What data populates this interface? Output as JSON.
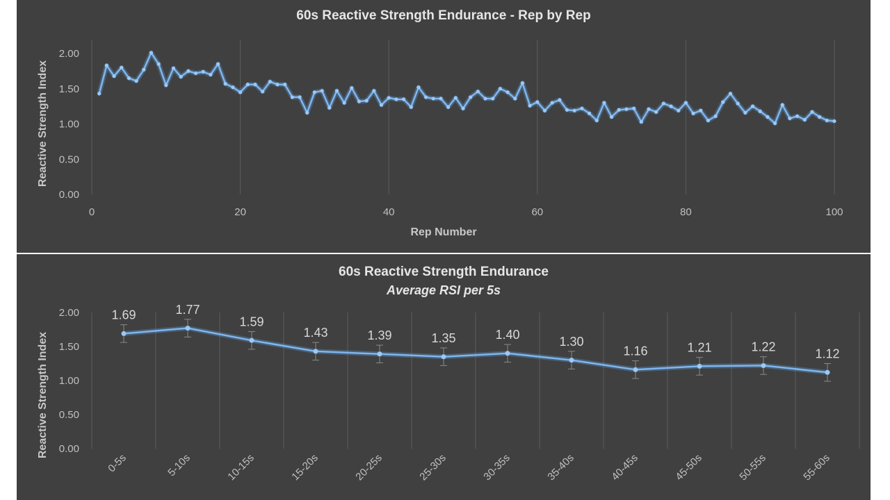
{
  "chart_data": [
    {
      "type": "line",
      "title": "60s Reactive Strength Endurance - Rep by Rep",
      "xlabel": "Rep Number",
      "ylabel": "Reactive Strength Index",
      "xlim": [
        0,
        100
      ],
      "ylim": [
        0,
        2
      ],
      "xticks": [
        "0",
        "20",
        "40",
        "60",
        "80",
        "100"
      ],
      "yticks": [
        "0.00",
        "0.50",
        "1.00",
        "1.50",
        "2.00"
      ],
      "x": [
        1,
        2,
        3,
        4,
        5,
        6,
        7,
        8,
        9,
        10,
        11,
        12,
        13,
        14,
        15,
        16,
        17,
        18,
        19,
        20,
        21,
        22,
        23,
        24,
        25,
        26,
        27,
        28,
        29,
        30,
        31,
        32,
        33,
        34,
        35,
        36,
        37,
        38,
        39,
        40,
        41,
        42,
        43,
        44,
        45,
        46,
        47,
        48,
        49,
        50,
        51,
        52,
        53,
        54,
        55,
        56,
        57,
        58,
        59,
        60,
        61,
        62,
        63,
        64,
        65,
        66,
        67,
        68,
        69,
        70,
        71,
        72,
        73,
        74,
        75,
        76,
        77,
        78,
        79,
        80,
        81,
        82,
        83,
        84,
        85,
        86,
        87,
        88,
        89,
        90,
        91,
        92,
        93,
        94,
        95,
        96,
        97,
        98,
        99,
        100
      ],
      "values": [
        1.43,
        1.83,
        1.68,
        1.8,
        1.65,
        1.61,
        1.77,
        2.01,
        1.85,
        1.55,
        1.79,
        1.67,
        1.75,
        1.72,
        1.74,
        1.7,
        1.85,
        1.57,
        1.52,
        1.45,
        1.56,
        1.56,
        1.46,
        1.6,
        1.56,
        1.56,
        1.38,
        1.38,
        1.16,
        1.45,
        1.47,
        1.23,
        1.47,
        1.3,
        1.51,
        1.32,
        1.33,
        1.47,
        1.27,
        1.37,
        1.35,
        1.35,
        1.24,
        1.52,
        1.38,
        1.36,
        1.36,
        1.24,
        1.37,
        1.22,
        1.38,
        1.46,
        1.36,
        1.36,
        1.5,
        1.45,
        1.36,
        1.58,
        1.26,
        1.31,
        1.19,
        1.3,
        1.34,
        1.2,
        1.19,
        1.22,
        1.15,
        1.05,
        1.3,
        1.1,
        1.2,
        1.21,
        1.22,
        1.03,
        1.21,
        1.17,
        1.29,
        1.25,
        1.19,
        1.3,
        1.15,
        1.19,
        1.05,
        1.11,
        1.31,
        1.43,
        1.29,
        1.16,
        1.25,
        1.18,
        1.1,
        1.01,
        1.27,
        1.08,
        1.11,
        1.06,
        1.17,
        1.1,
        1.05,
        1.04
      ]
    },
    {
      "type": "line",
      "title": "60s Reactive Strength Endurance",
      "subtitle": "Average RSI per 5s",
      "xlabel": "",
      "ylabel": "Reactive Strength Index",
      "ylim": [
        0,
        2
      ],
      "yticks": [
        "0.00",
        "0.50",
        "1.00",
        "1.50",
        "2.00"
      ],
      "categories": [
        "0-5s",
        "5-10s",
        "10-15s",
        "15-20s",
        "20-25s",
        "25-30s",
        "30-35s",
        "35-40s",
        "40-45s",
        "45-50s",
        "50-55s",
        "55-60s"
      ],
      "values": [
        1.69,
        1.77,
        1.59,
        1.43,
        1.39,
        1.35,
        1.4,
        1.3,
        1.16,
        1.21,
        1.22,
        1.12
      ],
      "labels": [
        "1.69",
        "1.77",
        "1.59",
        "1.43",
        "1.39",
        "1.35",
        "1.40",
        "1.30",
        "1.16",
        "1.21",
        "1.22",
        "1.12"
      ],
      "error": [
        0.13,
        0.13,
        0.13,
        0.13,
        0.13,
        0.13,
        0.13,
        0.13,
        0.13,
        0.13,
        0.13,
        0.13
      ]
    }
  ]
}
